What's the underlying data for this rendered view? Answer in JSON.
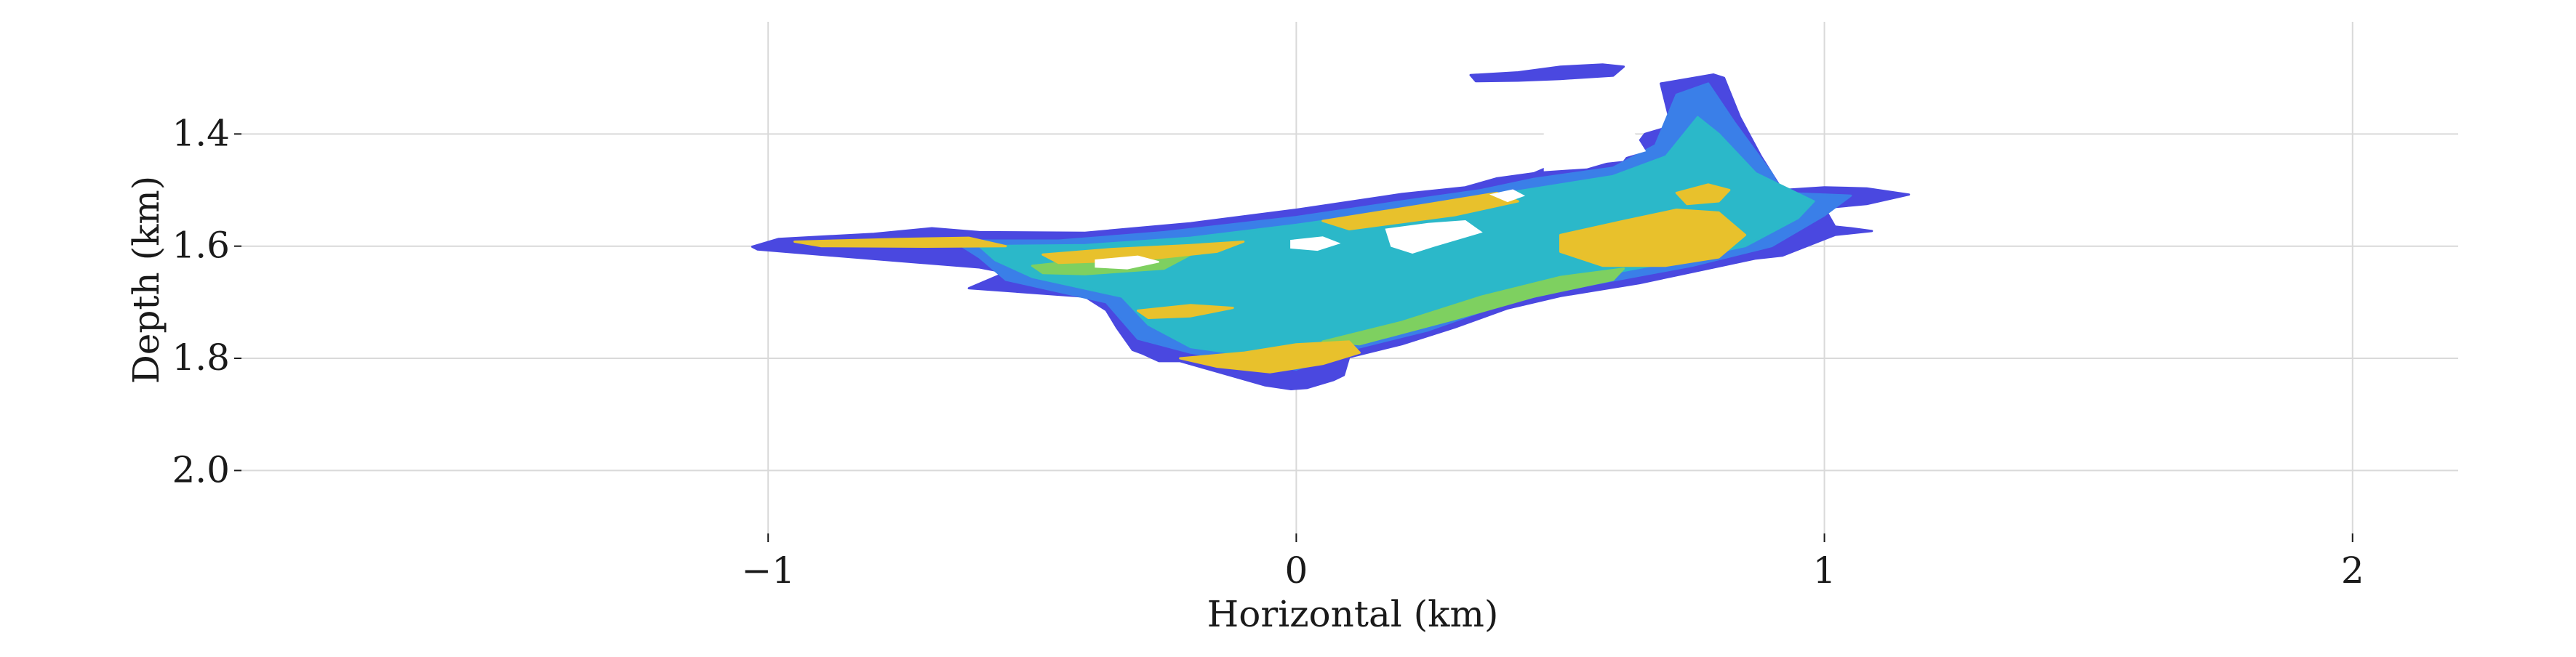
{
  "chart_data": {
    "type": "heatmap",
    "title": "",
    "xlabel": "Horizontal (km)",
    "ylabel": "Depth (km)",
    "xlim": [
      -2.0,
      2.2
    ],
    "ylim": [
      2.12,
      1.2
    ],
    "y_inverted": true,
    "grid": true,
    "legend": "none",
    "x_ticks": [
      {
        "value": -1,
        "label": "−1"
      },
      {
        "value": 0,
        "label": "0"
      },
      {
        "value": 1,
        "label": "1"
      },
      {
        "value": 2,
        "label": "2"
      }
    ],
    "y_ticks": [
      {
        "value": 1.4,
        "label": "1.4"
      },
      {
        "value": 1.6,
        "label": "1.6"
      },
      {
        "value": 1.8,
        "label": "1.8"
      },
      {
        "value": 2.0,
        "label": "2.0"
      }
    ],
    "colors": {
      "level_1": "#4a48e0",
      "level_2": "#3a7fe8",
      "level_3": "#2bb8c9",
      "level_4": "#7ed060",
      "level_5": "#e8c12c",
      "grid": "#d9d9d9",
      "axis_text": "#1a1a1a"
    },
    "regions": [
      {
        "level": 1,
        "points": [
          [
            -1.03,
            1.601
          ],
          [
            -0.98,
            1.587
          ],
          [
            -0.8,
            1.578
          ],
          [
            -0.69,
            1.568
          ],
          [
            -0.6,
            1.575
          ],
          [
            -0.4,
            1.576
          ],
          [
            -0.2,
            1.559
          ],
          [
            0.0,
            1.535
          ],
          [
            0.2,
            1.507
          ],
          [
            0.32,
            1.495
          ],
          [
            0.38,
            1.479
          ],
          [
            0.45,
            1.47
          ],
          [
            0.5,
            1.45
          ],
          [
            0.55,
            1.445
          ],
          [
            0.58,
            1.454
          ],
          [
            0.62,
            1.45
          ],
          [
            0.66,
            1.4
          ],
          [
            0.71,
            1.386
          ],
          [
            0.69,
            1.31
          ],
          [
            0.74,
            1.302
          ],
          [
            0.79,
            1.294
          ],
          [
            0.81,
            1.3
          ],
          [
            0.84,
            1.37
          ],
          [
            0.88,
            1.44
          ],
          [
            0.92,
            1.5
          ],
          [
            1.0,
            1.495
          ],
          [
            1.08,
            1.497
          ],
          [
            1.16,
            1.508
          ],
          [
            1.08,
            1.525
          ],
          [
            1.0,
            1.532
          ],
          [
            1.02,
            1.565
          ],
          [
            1.05,
            1.568
          ],
          [
            1.09,
            1.573
          ],
          [
            1.02,
            1.58
          ],
          [
            0.92,
            1.617
          ],
          [
            0.87,
            1.622
          ],
          [
            0.8,
            1.636
          ],
          [
            0.65,
            1.666
          ],
          [
            0.5,
            1.689
          ],
          [
            0.4,
            1.711
          ],
          [
            0.3,
            1.745
          ],
          [
            0.2,
            1.775
          ],
          [
            0.1,
            1.798
          ],
          [
            0.09,
            1.83
          ],
          [
            0.07,
            1.839
          ],
          [
            0.02,
            1.853
          ],
          [
            -0.01,
            1.855
          ],
          [
            -0.06,
            1.848
          ],
          [
            -0.22,
            1.805
          ],
          [
            -0.26,
            1.805
          ],
          [
            -0.29,
            1.792
          ],
          [
            -0.31,
            1.785
          ],
          [
            -0.34,
            1.745
          ],
          [
            -0.36,
            1.714
          ],
          [
            -0.4,
            1.69
          ],
          [
            -0.62,
            1.675
          ],
          [
            -0.55,
            1.647
          ],
          [
            -0.6,
            1.638
          ],
          [
            -0.8,
            1.623
          ],
          [
            -1.02,
            1.606
          ]
        ]
      },
      {
        "level": 1,
        "points": [
          [
            0.33,
            1.295
          ],
          [
            0.42,
            1.29
          ],
          [
            0.5,
            1.28
          ],
          [
            0.58,
            1.276
          ],
          [
            0.62,
            1.28
          ],
          [
            0.6,
            1.296
          ],
          [
            0.5,
            1.302
          ],
          [
            0.42,
            1.305
          ],
          [
            0.34,
            1.306
          ]
        ]
      },
      {
        "level": 2,
        "points": [
          [
            -0.65,
            1.59
          ],
          [
            -0.45,
            1.59
          ],
          [
            -0.25,
            1.575
          ],
          [
            0.0,
            1.548
          ],
          [
            0.2,
            1.52
          ],
          [
            0.35,
            1.5
          ],
          [
            0.45,
            1.48
          ],
          [
            0.6,
            1.46
          ],
          [
            0.68,
            1.42
          ],
          [
            0.72,
            1.33
          ],
          [
            0.78,
            1.31
          ],
          [
            0.83,
            1.38
          ],
          [
            0.9,
            1.47
          ],
          [
            0.92,
            1.505
          ],
          [
            1.05,
            1.51
          ],
          [
            1.0,
            1.545
          ],
          [
            0.9,
            1.6
          ],
          [
            0.75,
            1.635
          ],
          [
            0.55,
            1.67
          ],
          [
            0.4,
            1.7
          ],
          [
            0.25,
            1.75
          ],
          [
            0.1,
            1.785
          ],
          [
            0.0,
            1.82
          ],
          [
            -0.2,
            1.79
          ],
          [
            -0.3,
            1.765
          ],
          [
            -0.36,
            1.7
          ],
          [
            -0.55,
            1.66
          ],
          [
            -0.6,
            1.62
          ]
        ]
      },
      {
        "level": 3,
        "points": [
          [
            -0.6,
            1.6
          ],
          [
            -0.4,
            1.598
          ],
          [
            -0.2,
            1.585
          ],
          [
            0.0,
            1.562
          ],
          [
            0.2,
            1.535
          ],
          [
            0.4,
            1.505
          ],
          [
            0.6,
            1.475
          ],
          [
            0.7,
            1.44
          ],
          [
            0.76,
            1.37
          ],
          [
            0.8,
            1.4
          ],
          [
            0.87,
            1.47
          ],
          [
            0.98,
            1.52
          ],
          [
            0.95,
            1.55
          ],
          [
            0.85,
            1.6
          ],
          [
            0.7,
            1.63
          ],
          [
            0.5,
            1.665
          ],
          [
            0.35,
            1.7
          ],
          [
            0.2,
            1.74
          ],
          [
            0.05,
            1.775
          ],
          [
            -0.05,
            1.8
          ],
          [
            -0.2,
            1.78
          ],
          [
            -0.28,
            1.74
          ],
          [
            -0.33,
            1.69
          ],
          [
            -0.5,
            1.655
          ],
          [
            -0.57,
            1.625
          ]
        ]
      },
      {
        "level": 4,
        "points": [
          [
            0.05,
            1.77
          ],
          [
            0.2,
            1.735
          ],
          [
            0.35,
            1.69
          ],
          [
            0.5,
            1.655
          ],
          [
            0.62,
            1.64
          ],
          [
            0.6,
            1.66
          ],
          [
            0.45,
            1.69
          ],
          [
            0.3,
            1.73
          ],
          [
            0.12,
            1.775
          ]
        ]
      },
      {
        "level": 4,
        "points": [
          [
            -0.5,
            1.635
          ],
          [
            -0.35,
            1.62
          ],
          [
            -0.2,
            1.615
          ],
          [
            -0.25,
            1.64
          ],
          [
            -0.4,
            1.65
          ],
          [
            -0.48,
            1.648
          ]
        ]
      },
      {
        "level": 5,
        "points": [
          [
            -0.95,
            1.592
          ],
          [
            -0.75,
            1.587
          ],
          [
            -0.62,
            1.585
          ],
          [
            -0.55,
            1.6
          ],
          [
            -0.7,
            1.601
          ],
          [
            -0.9,
            1.6
          ]
        ]
      },
      {
        "level": 5,
        "points": [
          [
            -0.48,
            1.615
          ],
          [
            -0.35,
            1.605
          ],
          [
            -0.2,
            1.598
          ],
          [
            -0.1,
            1.592
          ],
          [
            -0.15,
            1.61
          ],
          [
            -0.3,
            1.625
          ],
          [
            -0.45,
            1.63
          ]
        ]
      },
      {
        "level": 5,
        "points": [
          [
            0.05,
            1.555
          ],
          [
            0.25,
            1.525
          ],
          [
            0.38,
            1.505
          ],
          [
            0.42,
            1.52
          ],
          [
            0.3,
            1.545
          ],
          [
            0.1,
            1.57
          ]
        ]
      },
      {
        "level": 5,
        "points": [
          [
            0.5,
            1.58
          ],
          [
            0.62,
            1.555
          ],
          [
            0.72,
            1.535
          ],
          [
            0.8,
            1.54
          ],
          [
            0.85,
            1.58
          ],
          [
            0.8,
            1.62
          ],
          [
            0.7,
            1.635
          ],
          [
            0.58,
            1.635
          ],
          [
            0.5,
            1.61
          ]
        ]
      },
      {
        "level": 5,
        "points": [
          [
            0.72,
            1.505
          ],
          [
            0.78,
            1.49
          ],
          [
            0.82,
            1.5
          ],
          [
            0.8,
            1.52
          ],
          [
            0.74,
            1.525
          ]
        ]
      },
      {
        "level": 5,
        "points": [
          [
            -0.22,
            1.8
          ],
          [
            -0.1,
            1.79
          ],
          [
            0.0,
            1.775
          ],
          [
            0.1,
            1.77
          ],
          [
            0.12,
            1.79
          ],
          [
            0.05,
            1.81
          ],
          [
            -0.05,
            1.825
          ],
          [
            -0.15,
            1.815
          ]
        ]
      },
      {
        "level": 5,
        "points": [
          [
            -0.3,
            1.715
          ],
          [
            -0.2,
            1.705
          ],
          [
            -0.12,
            1.71
          ],
          [
            -0.2,
            1.725
          ],
          [
            -0.28,
            1.728
          ]
        ]
      }
    ],
    "holes": [
      [
        [
          -0.38,
          1.625
        ],
        [
          -0.3,
          1.618
        ],
        [
          -0.26,
          1.628
        ],
        [
          -0.32,
          1.64
        ],
        [
          -0.38,
          1.637
        ]
      ],
      [
        [
          -0.01,
          1.59
        ],
        [
          0.05,
          1.584
        ],
        [
          0.08,
          1.595
        ],
        [
          0.04,
          1.607
        ],
        [
          -0.01,
          1.603
        ]
      ],
      [
        [
          0.17,
          1.57
        ],
        [
          0.25,
          1.56
        ],
        [
          0.32,
          1.555
        ],
        [
          0.35,
          1.575
        ],
        [
          0.26,
          1.6
        ],
        [
          0.22,
          1.612
        ],
        [
          0.18,
          1.6
        ]
      ],
      [
        [
          0.47,
          1.4
        ],
        [
          0.63,
          1.385
        ],
        [
          0.66,
          1.43
        ],
        [
          0.55,
          1.46
        ],
        [
          0.47,
          1.465
        ]
      ],
      [
        [
          0.37,
          1.508
        ],
        [
          0.41,
          1.5
        ],
        [
          0.43,
          1.51
        ],
        [
          0.4,
          1.52
        ]
      ]
    ]
  }
}
